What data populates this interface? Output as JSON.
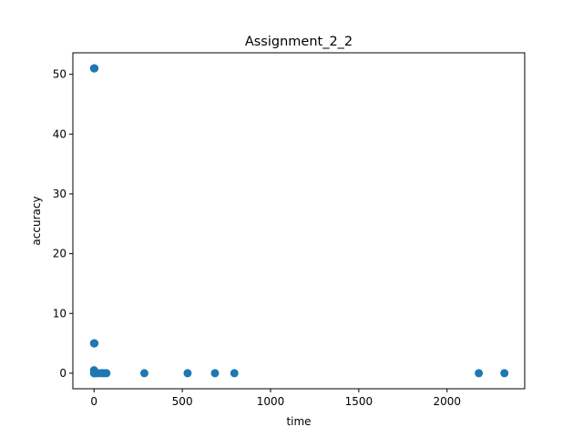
{
  "chart_data": {
    "type": "scatter",
    "title": "Assignment_2_2",
    "xlabel": "time",
    "ylabel": "accuracy",
    "xlim": [
      -120,
      2440
    ],
    "ylim": [
      -2.6,
      53.6
    ],
    "xticks": [
      0,
      500,
      1000,
      1500,
      2000
    ],
    "yticks": [
      0,
      10,
      20,
      30,
      40,
      50
    ],
    "grid": false,
    "legend": "none",
    "marker_color": "#1f77b4",
    "points": [
      {
        "x": 0,
        "y": 51
      },
      {
        "x": 1,
        "y": 51
      },
      {
        "x": 2,
        "y": 51
      },
      {
        "x": 0,
        "y": 5
      },
      {
        "x": 1,
        "y": 5
      },
      {
        "x": 2,
        "y": 5
      },
      {
        "x": 0,
        "y": 0.5
      },
      {
        "x": 1,
        "y": 0.3
      },
      {
        "x": 0,
        "y": 0
      },
      {
        "x": 2,
        "y": 0
      },
      {
        "x": 5,
        "y": 0
      },
      {
        "x": 10,
        "y": 0
      },
      {
        "x": 20,
        "y": 0
      },
      {
        "x": 40,
        "y": 0
      },
      {
        "x": 55,
        "y": 0
      },
      {
        "x": 70,
        "y": 0
      },
      {
        "x": 285,
        "y": 0
      },
      {
        "x": 530,
        "y": 0
      },
      {
        "x": 685,
        "y": 0
      },
      {
        "x": 795,
        "y": 0
      },
      {
        "x": 2180,
        "y": 0
      },
      {
        "x": 2325,
        "y": 0
      }
    ]
  }
}
